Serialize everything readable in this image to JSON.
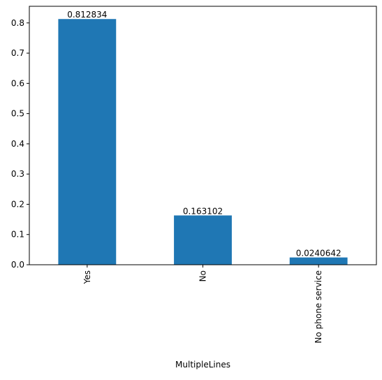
{
  "chart_data": {
    "type": "bar",
    "categories": [
      "Yes",
      "No",
      "No phone service"
    ],
    "values": [
      0.812834,
      0.163102,
      0.0240642
    ],
    "data_labels": [
      "0.812834",
      "0.163102",
      "0.0240642"
    ],
    "xlabel": "MultipleLines",
    "ylabel": "",
    "title": "",
    "ylim": [
      0,
      0.855
    ],
    "yticks": [
      0.0,
      0.1,
      0.2,
      0.3,
      0.4,
      0.5,
      0.6,
      0.7,
      0.8
    ],
    "ytick_labels": [
      "0.0",
      "0.1",
      "0.2",
      "0.3",
      "0.4",
      "0.5",
      "0.6",
      "0.7",
      "0.8"
    ],
    "bar_color": "#1f77b4",
    "grid": false,
    "legend": "none",
    "xtick_rotation": "vertical"
  }
}
